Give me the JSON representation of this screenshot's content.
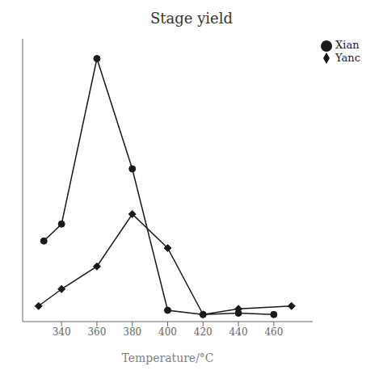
{
  "chart_data": {
    "type": "line",
    "title": "Stage yield",
    "x_label": "Temperature/°C",
    "series": [
      {
        "name": "Xian",
        "color": "#1a1a1a",
        "marker": "circle",
        "x": [
          330,
          340,
          360,
          380,
          400,
          420,
          440,
          460
        ],
        "values": [
          0.285,
          0.345,
          0.93,
          0.54,
          0.04,
          0.025,
          0.03,
          0.025
        ]
      },
      {
        "name": "Yanc",
        "color": "#1a1a1a",
        "marker": "diamond",
        "x": [
          327,
          340,
          360,
          380,
          400,
          420,
          440,
          470
        ],
        "values": [
          0.055,
          0.115,
          0.195,
          0.38,
          0.26,
          0.025,
          0.045,
          0.055
        ]
      }
    ],
    "xlim": [
      318,
      482
    ],
    "xticks": [
      340,
      360,
      380,
      400,
      420,
      440,
      460
    ],
    "ylim": [
      0,
      1.0
    ],
    "tick_labels": "x",
    "grid": false,
    "legend": "upper right"
  }
}
